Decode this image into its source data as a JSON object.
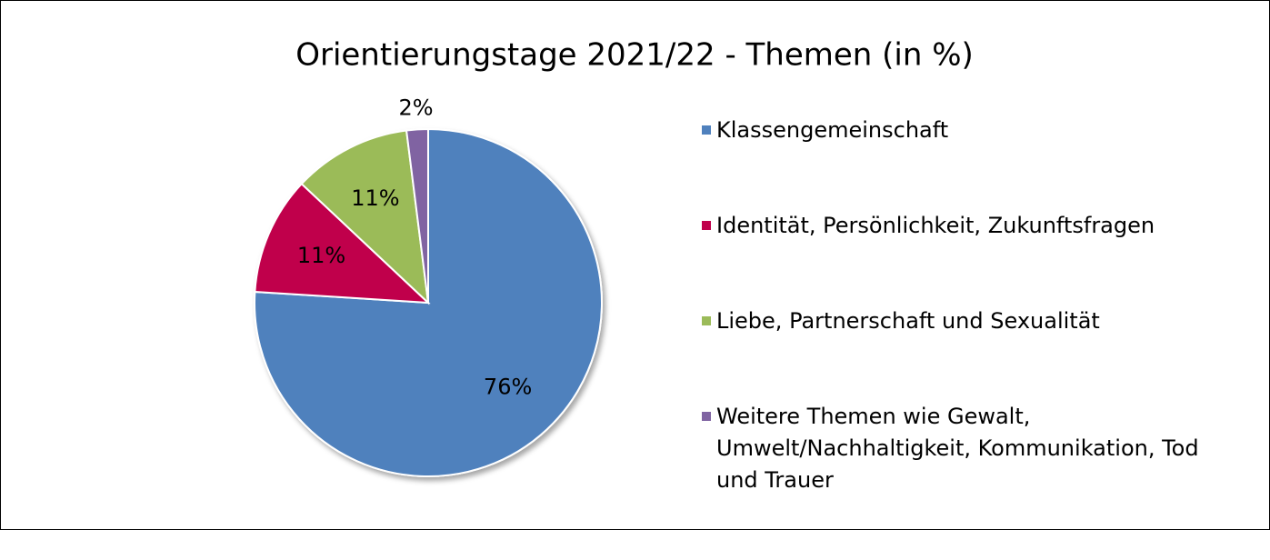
{
  "chart_data": {
    "type": "pie",
    "title": "Orientierungstage 2021/22 - Themen (in %)",
    "categories": [
      "Klassengemeinschaft",
      "Identität, Persönlichkeit, Zukunftsfragen",
      "Liebe, Partnerschaft und Sexualität",
      "Weitere Themen wie Gewalt, Umwelt/Nachhaltigkeit, Kommunikation, Tod und Trauer"
    ],
    "values": [
      76,
      11,
      11,
      2
    ],
    "value_labels": [
      "76%",
      "11%",
      "11%",
      "2%"
    ],
    "colors": [
      "#4f81bd",
      "#c0004c",
      "#9bbb59",
      "#8064a2"
    ],
    "legend": "right"
  }
}
